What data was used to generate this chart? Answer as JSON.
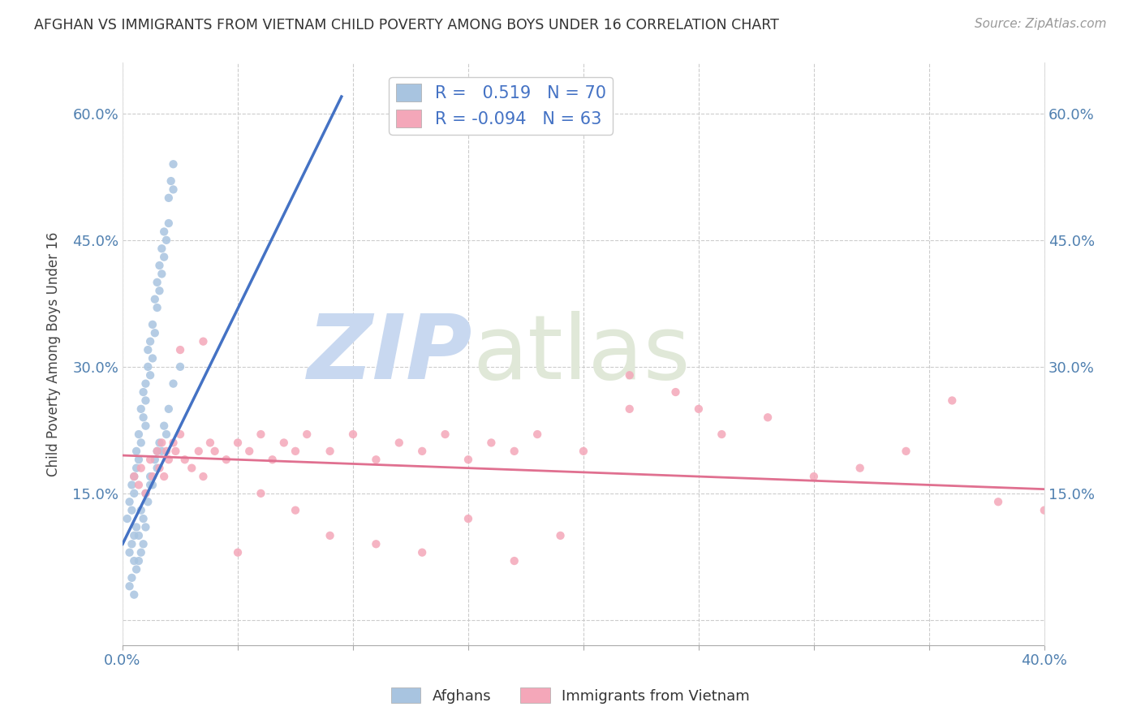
{
  "title": "AFGHAN VS IMMIGRANTS FROM VIETNAM CHILD POVERTY AMONG BOYS UNDER 16 CORRELATION CHART",
  "source": "Source: ZipAtlas.com",
  "ylabel": "Child Poverty Among Boys Under 16",
  "xlim": [
    0.0,
    0.4
  ],
  "ylim": [
    -0.03,
    0.66
  ],
  "afghans_R": 0.519,
  "afghans_N": 70,
  "vietnam_R": -0.094,
  "vietnam_N": 63,
  "afghan_color": "#a8c4e0",
  "vietnam_color": "#f4a7b9",
  "afghan_line_color": "#4472c4",
  "vietnam_line_color": "#e07090",
  "background_color": "#ffffff",
  "watermark": "ZIPatlas",
  "watermark_color": "#d0e4f5",
  "scatter_size": 55,
  "afghans_x": [
    0.002,
    0.003,
    0.004,
    0.004,
    0.005,
    0.005,
    0.005,
    0.006,
    0.006,
    0.007,
    0.007,
    0.008,
    0.008,
    0.009,
    0.009,
    0.01,
    0.01,
    0.01,
    0.011,
    0.011,
    0.012,
    0.012,
    0.013,
    0.013,
    0.014,
    0.014,
    0.015,
    0.015,
    0.016,
    0.016,
    0.017,
    0.017,
    0.018,
    0.018,
    0.019,
    0.02,
    0.02,
    0.021,
    0.022,
    0.022,
    0.003,
    0.004,
    0.005,
    0.006,
    0.007,
    0.008,
    0.009,
    0.01,
    0.011,
    0.012,
    0.013,
    0.014,
    0.015,
    0.016,
    0.017,
    0.018,
    0.019,
    0.02,
    0.022,
    0.025,
    0.003,
    0.004,
    0.005,
    0.006,
    0.007,
    0.008,
    0.009,
    0.01,
    0.012,
    0.015
  ],
  "afghans_y": [
    0.12,
    0.14,
    0.13,
    0.16,
    0.15,
    0.17,
    0.1,
    0.18,
    0.2,
    0.19,
    0.22,
    0.21,
    0.25,
    0.24,
    0.27,
    0.26,
    0.28,
    0.23,
    0.3,
    0.32,
    0.29,
    0.33,
    0.31,
    0.35,
    0.34,
    0.38,
    0.37,
    0.4,
    0.39,
    0.42,
    0.41,
    0.44,
    0.43,
    0.46,
    0.45,
    0.47,
    0.5,
    0.52,
    0.51,
    0.54,
    0.08,
    0.09,
    0.07,
    0.11,
    0.1,
    0.13,
    0.12,
    0.15,
    0.14,
    0.17,
    0.16,
    0.19,
    0.18,
    0.21,
    0.2,
    0.23,
    0.22,
    0.25,
    0.28,
    0.3,
    0.04,
    0.05,
    0.03,
    0.06,
    0.07,
    0.08,
    0.09,
    0.11,
    0.16,
    0.2
  ],
  "vietnam_x": [
    0.005,
    0.007,
    0.008,
    0.01,
    0.012,
    0.013,
    0.015,
    0.016,
    0.017,
    0.018,
    0.019,
    0.02,
    0.022,
    0.023,
    0.025,
    0.027,
    0.03,
    0.033,
    0.035,
    0.038,
    0.04,
    0.045,
    0.05,
    0.055,
    0.06,
    0.065,
    0.07,
    0.075,
    0.08,
    0.09,
    0.1,
    0.11,
    0.12,
    0.13,
    0.14,
    0.15,
    0.16,
    0.17,
    0.18,
    0.2,
    0.22,
    0.24,
    0.26,
    0.28,
    0.3,
    0.32,
    0.34,
    0.36,
    0.38,
    0.4,
    0.025,
    0.035,
    0.05,
    0.06,
    0.075,
    0.09,
    0.11,
    0.13,
    0.15,
    0.17,
    0.19,
    0.22,
    0.25
  ],
  "vietnam_y": [
    0.17,
    0.16,
    0.18,
    0.15,
    0.19,
    0.17,
    0.2,
    0.18,
    0.21,
    0.17,
    0.2,
    0.19,
    0.21,
    0.2,
    0.22,
    0.19,
    0.18,
    0.2,
    0.17,
    0.21,
    0.2,
    0.19,
    0.21,
    0.2,
    0.22,
    0.19,
    0.21,
    0.2,
    0.22,
    0.2,
    0.22,
    0.19,
    0.21,
    0.2,
    0.22,
    0.19,
    0.21,
    0.2,
    0.22,
    0.2,
    0.25,
    0.27,
    0.22,
    0.24,
    0.17,
    0.18,
    0.2,
    0.26,
    0.14,
    0.13,
    0.32,
    0.33,
    0.08,
    0.15,
    0.13,
    0.1,
    0.09,
    0.08,
    0.12,
    0.07,
    0.1,
    0.29,
    0.25
  ],
  "afghan_line_x0": 0.0,
  "afghan_line_x1": 0.095,
  "afghan_line_y0": 0.09,
  "afghan_line_y1": 0.62,
  "vietnam_line_x0": 0.0,
  "vietnam_line_x1": 0.4,
  "vietnam_line_y0": 0.195,
  "vietnam_line_y1": 0.155
}
